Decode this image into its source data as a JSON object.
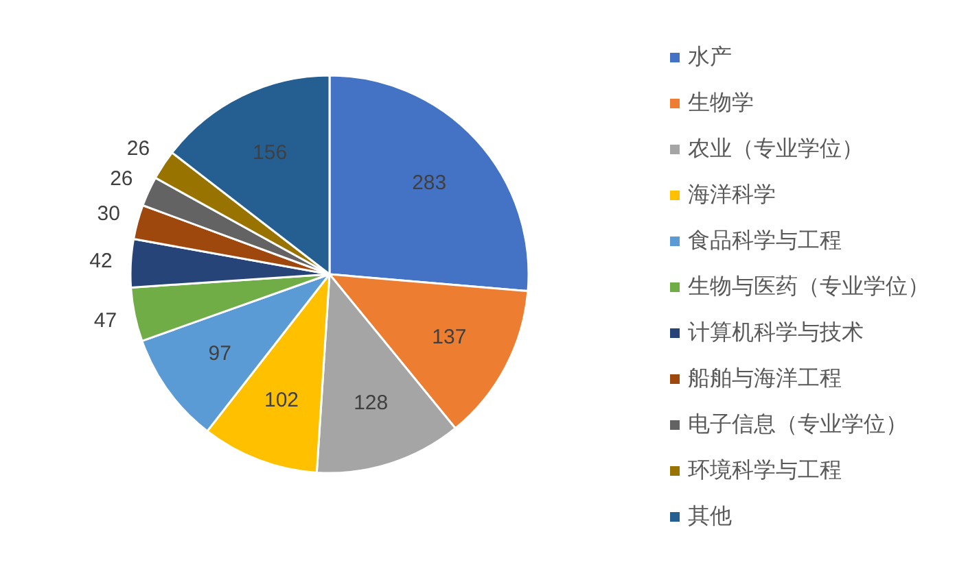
{
  "chart_data": {
    "type": "pie",
    "categories": [
      "水产",
      "生物学",
      "农业（专业学位）",
      "海洋科学",
      "食品科学与工程",
      "生物与医药（专业学位）",
      "计算机科学与技术",
      "船舶与海洋工程",
      "电子信息（专业学位）",
      "环境科学与工程",
      "其他"
    ],
    "values": [
      283,
      137,
      128,
      102,
      97,
      47,
      42,
      30,
      26,
      26,
      156
    ],
    "colors": [
      "#4472c4",
      "#ed7d31",
      "#a5a5a5",
      "#ffc000",
      "#5b9bd5",
      "#70ad47",
      "#264478",
      "#9e480e",
      "#636363",
      "#997300",
      "#255e91"
    ],
    "data_labels": true,
    "legend": "right"
  }
}
